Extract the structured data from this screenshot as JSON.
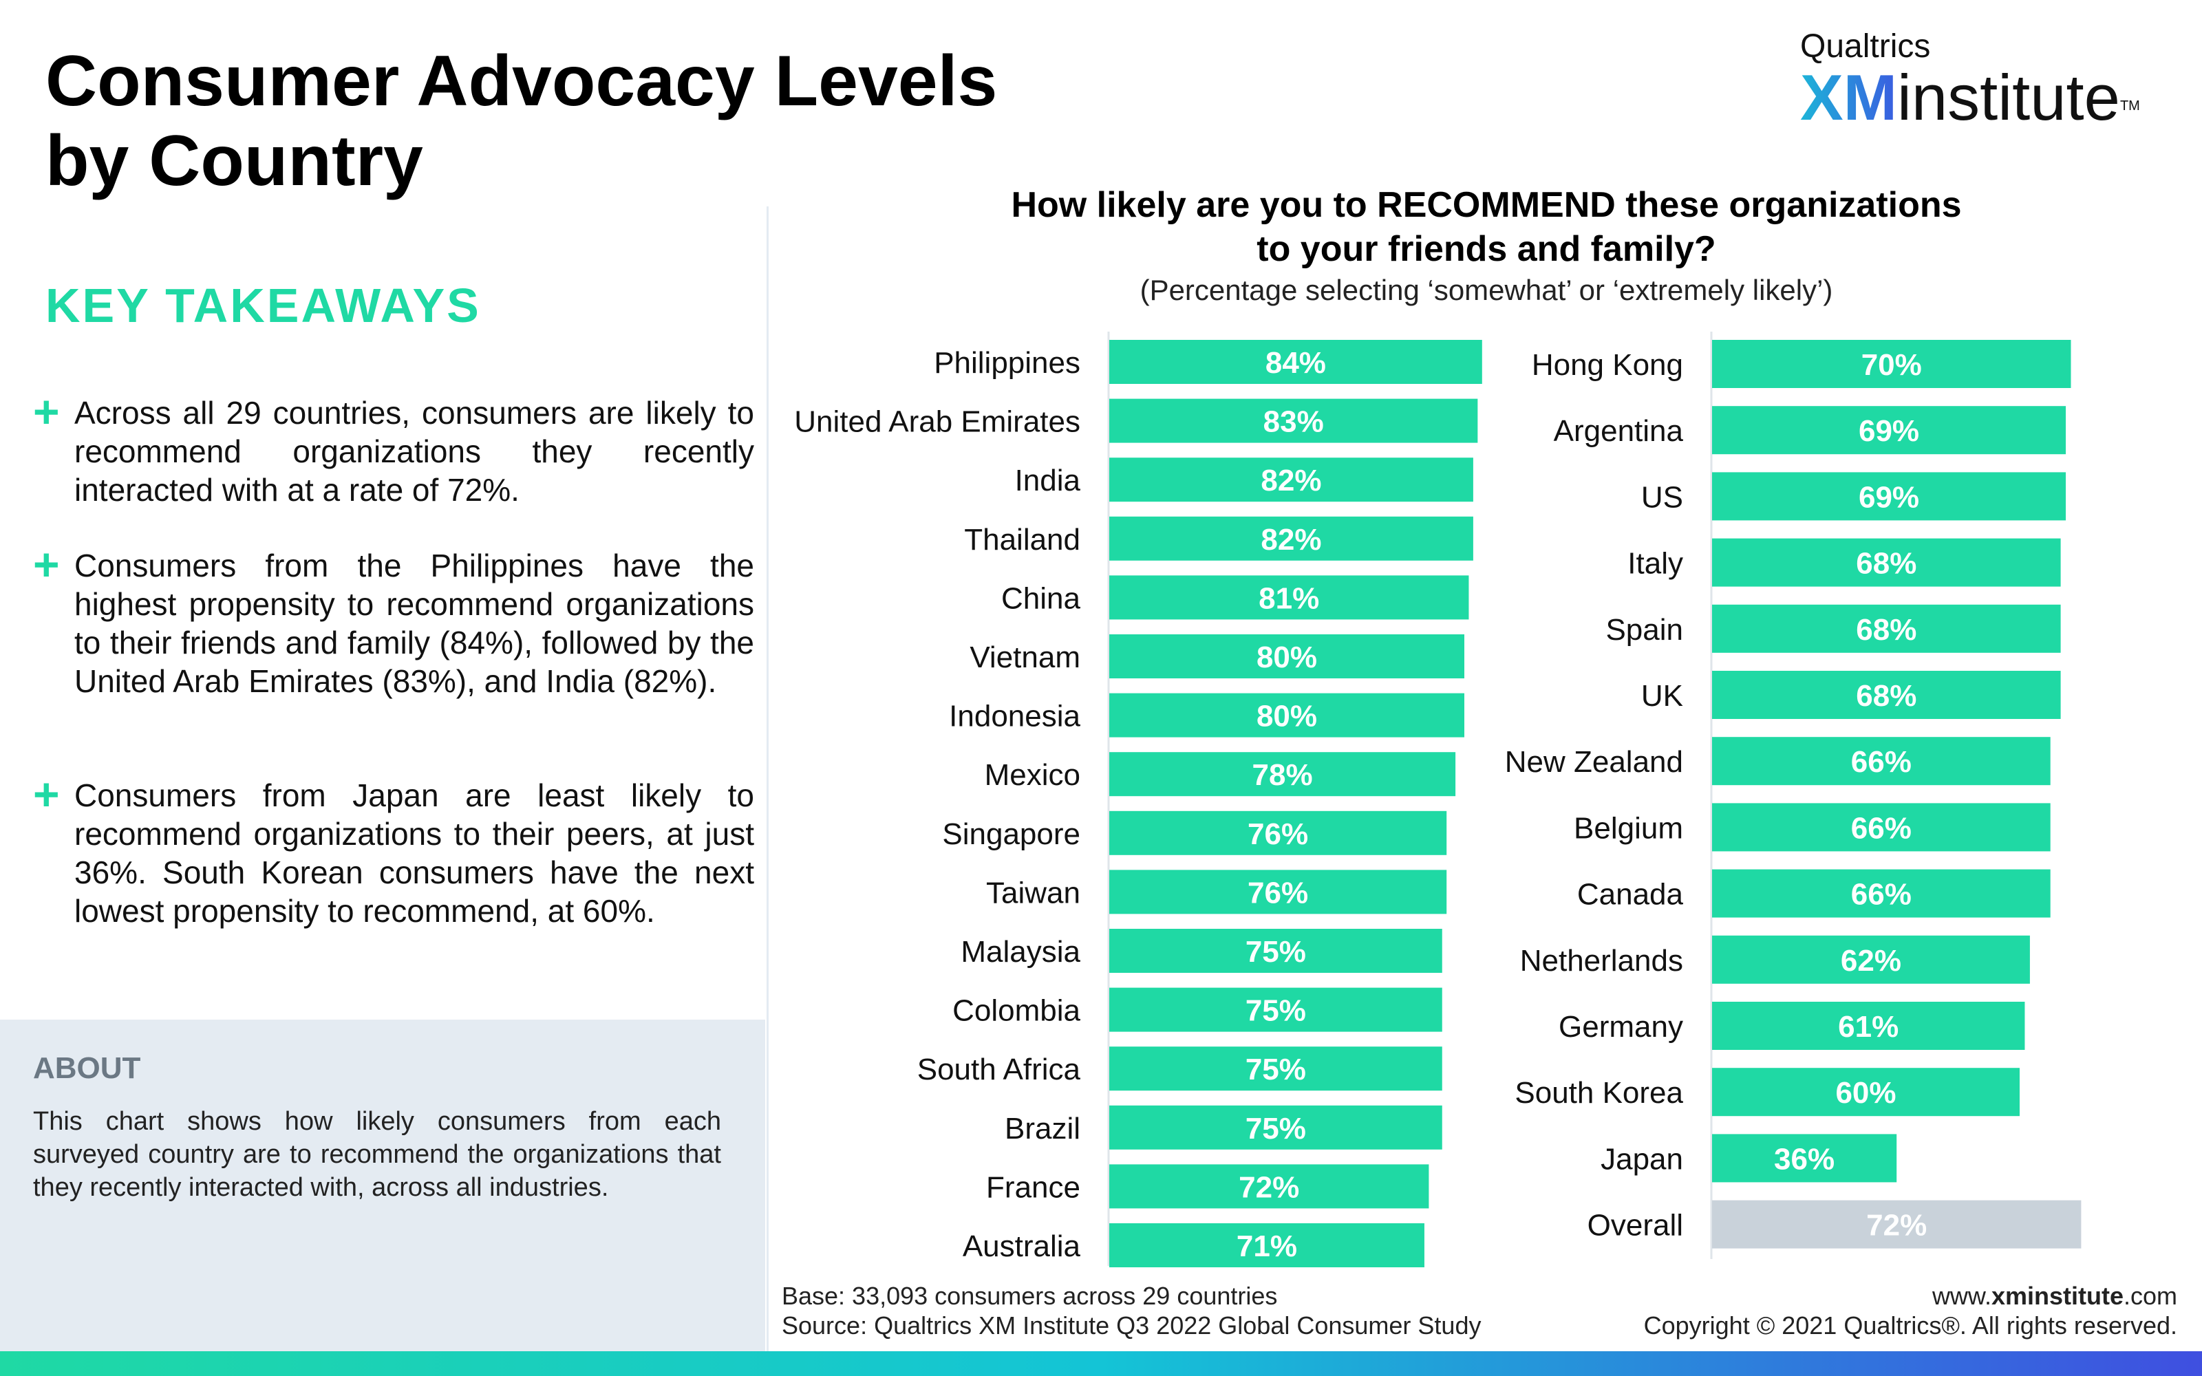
{
  "page": {
    "title_line1": "Consumer Advocacy Levels",
    "title_line2": "by Country"
  },
  "logo": {
    "brand": "Qualtrics",
    "xm": "XM",
    "institute": "institute",
    "tm": "TM"
  },
  "takeaways": {
    "heading": "KEY TAKEAWAYS",
    "items": [
      "Across all 29 countries, consumers are likely to recommend organizations they recently interacted with at a rate of 72%.",
      "Consumers from the Philippines have the highest propensity to recommend organizations to their friends and family (84%), followed by the United Arab Emirates (83%), and India (82%).",
      "Consumers from Japan are least likely to recommend organizations to their peers, at just 36%. South Korean consumers have the next lowest propensity to recommend, at 60%."
    ]
  },
  "about": {
    "heading": "ABOUT",
    "text": "This chart shows how likely consumers from each surveyed country are to recommend the organizations that they recently interacted with, across all industries."
  },
  "footer": {
    "base": "Base: 33,093 consumers across 29 countries",
    "source": "Source: Qualtrics XM Institute Q3 2022 Global Consumer Study",
    "url_prefix": "www.",
    "url_bold": "xminstitute",
    "url_suffix": ".com",
    "copyright": "Copyright © 2021 Qualtrics®. All rights reserved."
  },
  "chart_data": {
    "type": "bar",
    "orientation": "horizontal",
    "title_line1": "How likely are you to RECOMMEND these organizations",
    "title_line2": "to your friends and family?",
    "subtitle": "(Percentage selecting ‘somewhat’ or ‘extremely likely’)",
    "value_format": "{v}%",
    "bar_color": "#1fd9a4",
    "overall_color": "#c9d2da",
    "panels": [
      {
        "categories": [
          "Philippines",
          "United Arab Emirates",
          "India",
          "Thailand",
          "China",
          "Vietnam",
          "Indonesia",
          "Mexico",
          "Singapore",
          "Taiwan",
          "Malaysia",
          "Colombia",
          "South Africa",
          "Brazil",
          "France",
          "Australia"
        ],
        "values": [
          84,
          83,
          82,
          82,
          81,
          80,
          80,
          78,
          76,
          76,
          75,
          75,
          75,
          75,
          72,
          71
        ]
      },
      {
        "categories": [
          "Hong Kong",
          "Argentina",
          "US",
          "Italy",
          "Spain",
          "UK",
          "New Zealand",
          "Belgium",
          "Canada",
          "Netherlands",
          "Germany",
          "South Korea",
          "Japan",
          "Overall"
        ],
        "values": [
          70,
          69,
          69,
          68,
          68,
          68,
          66,
          66,
          66,
          62,
          61,
          60,
          36,
          72
        ],
        "highlight": "Overall"
      }
    ]
  }
}
